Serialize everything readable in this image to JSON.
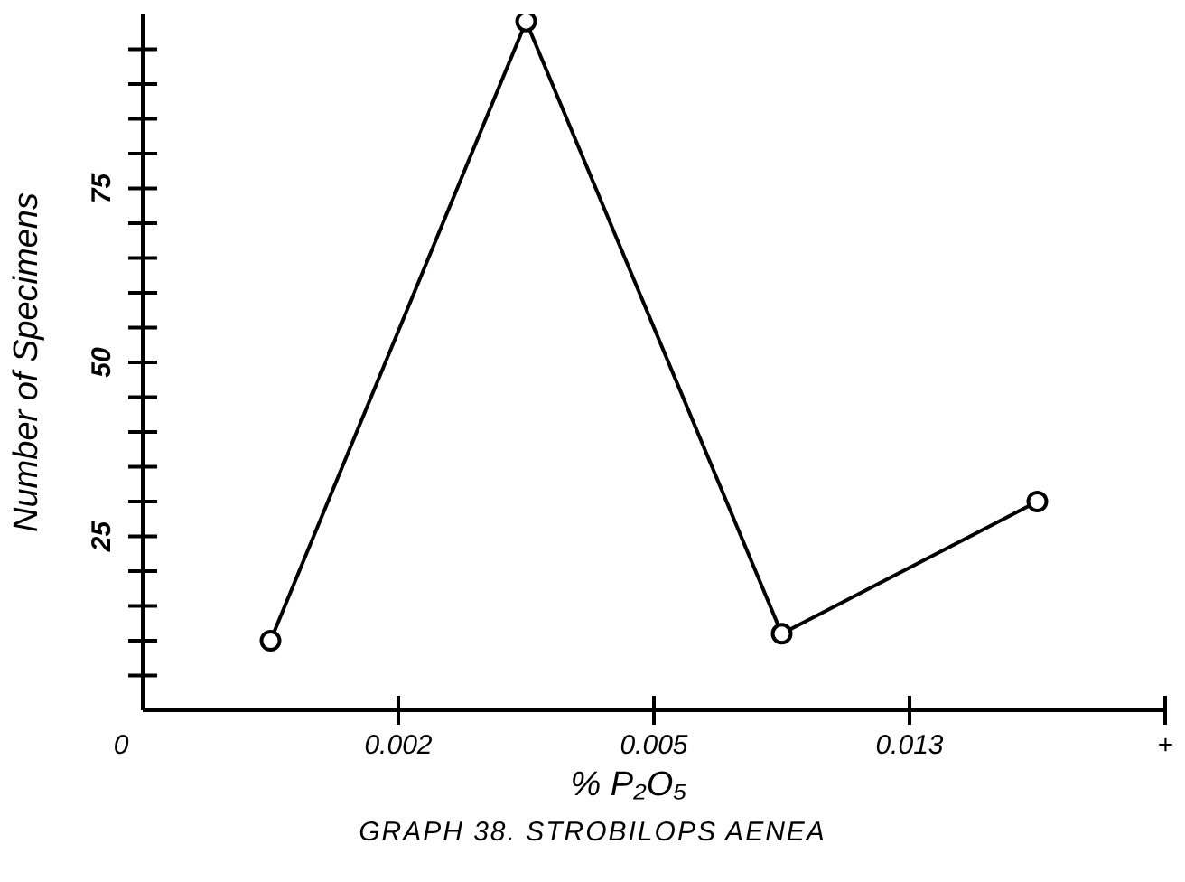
{
  "chart_data": {
    "type": "line",
    "title": "GRAPH 38. STROBILOPS AENEA",
    "xlabel": "% P₂O₅",
    "ylabel": "Number of Specimens",
    "categories": [
      "0",
      null,
      "0.002",
      null,
      "0.005",
      null,
      "0.013",
      null,
      "+"
    ],
    "values": [
      null,
      10,
      null,
      99,
      null,
      11,
      null,
      30,
      null
    ],
    "color": "#000000",
    "marker": "circle",
    "line_style": "solid",
    "ylim": [
      0,
      100
    ],
    "yticks": [
      {
        "value": 5,
        "label": null
      },
      {
        "value": 10,
        "label": null
      },
      {
        "value": 15,
        "label": null
      },
      {
        "value": 20,
        "label": null
      },
      25,
      {
        "value": 30,
        "label": null
      },
      {
        "value": 35,
        "label": null
      },
      {
        "value": 40,
        "label": null
      },
      {
        "value": 45,
        "label": null
      },
      50,
      {
        "value": 55,
        "label": null
      },
      {
        "value": 60,
        "label": null
      },
      {
        "value": 65,
        "label": null
      },
      {
        "value": 70,
        "label": null
      },
      75,
      {
        "value": 80,
        "label": null
      },
      {
        "value": 85,
        "label": null
      },
      {
        "value": 90,
        "label": null
      },
      {
        "value": 95,
        "label": null
      }
    ]
  }
}
